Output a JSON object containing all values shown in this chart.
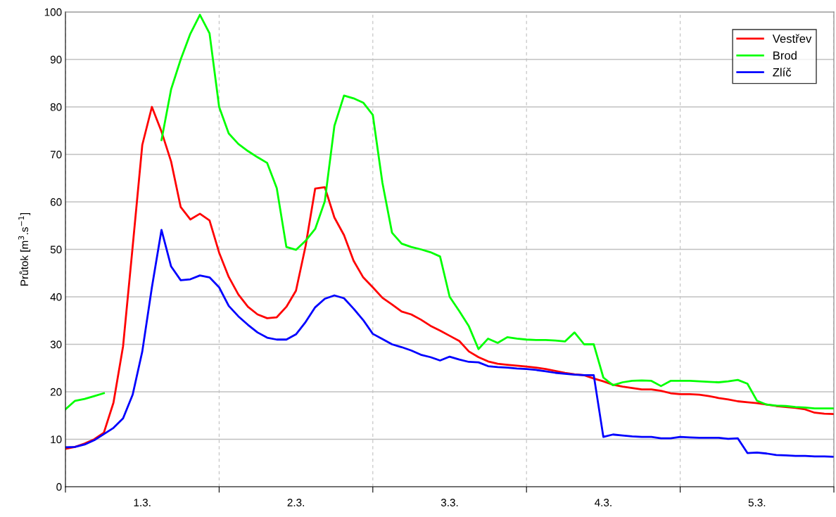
{
  "chart_data": {
    "type": "line",
    "ylabel": "Průtok [m$^{3}$.s$^{−1}$]",
    "categories": [
      null,
      null,
      null,
      null,
      null,
      null,
      null,
      null,
      "1.3.",
      null,
      null,
      null,
      null,
      null,
      null,
      null,
      null,
      null,
      null,
      null,
      null,
      null,
      null,
      null,
      "2.3.",
      null,
      null,
      null,
      null,
      null,
      null,
      null,
      null,
      null,
      null,
      null,
      null,
      null,
      null,
      null,
      "3.3.",
      null,
      null,
      null,
      null,
      null,
      null,
      null,
      null,
      null,
      null,
      null,
      null,
      null,
      null,
      null,
      "4.3.",
      null,
      null,
      null,
      null,
      null,
      null,
      null,
      null,
      null,
      null,
      null,
      null,
      null,
      null,
      null,
      "5.3.",
      null,
      null,
      null,
      null,
      null,
      null,
      null,
      null
    ],
    "ylim": [
      0,
      100
    ],
    "yticks": [
      0,
      10,
      20,
      30,
      40,
      50,
      60,
      70,
      80,
      90,
      100
    ],
    "grid": true,
    "legend": "top right",
    "marker": "none",
    "line_style": "solid",
    "series": [
      {
        "name": "Vestřev",
        "color": "#ff0000",
        "values": [
          8,
          8.4,
          9.1,
          10,
          11.4,
          17.7,
          29.6,
          50.6,
          72,
          80,
          74.8,
          68.5,
          58.9,
          56.3,
          57.5,
          56.1,
          49.3,
          44.2,
          40.5,
          37.9,
          36.3,
          35.5,
          35.7,
          37.9,
          41.3,
          50.7,
          62.8,
          63.1,
          56.7,
          53,
          47.6,
          44.1,
          42,
          39.8,
          38.4,
          36.9,
          36.3,
          35.2,
          33.9,
          32.9,
          31.8,
          30.7,
          28.5,
          27.3,
          26.4,
          25.9,
          25.7,
          25.5,
          25.3,
          25.1,
          24.8,
          24.4,
          24,
          23.7,
          23.5,
          22.8,
          22.2,
          21.5,
          21.1,
          20.8,
          20.5,
          20.5,
          20.2,
          19.7,
          19.5,
          19.5,
          19.4,
          19.1,
          18.7,
          18.4,
          18,
          17.8,
          17.6,
          17.3,
          17,
          16.8,
          16.6,
          16.3,
          15.6,
          15.4,
          15.3
        ]
      },
      {
        "name": "Brod",
        "color": "#00ff00",
        "values": [
          16.3,
          18.1,
          18.5,
          19.1,
          19.7,
          null,
          null,
          null,
          null,
          null,
          73,
          83.7,
          90,
          95.4,
          99.4,
          95.5,
          80,
          74.4,
          72.2,
          70.7,
          69.4,
          68.2,
          62.9,
          50.5,
          49.9,
          51.8,
          54.3,
          60.1,
          76,
          82.4,
          81.8,
          80.9,
          78.3,
          64,
          53.5,
          51.2,
          50.5,
          50,
          49.4,
          48.5,
          40,
          37,
          33.8,
          29,
          31.2,
          30.3,
          31.5,
          31.2,
          31,
          30.9,
          30.9,
          30.8,
          30.6,
          32.5,
          30,
          30,
          23,
          21.4,
          22,
          22.3,
          22.4,
          22.3,
          21.2,
          22.3,
          22.3,
          22.3,
          22.2,
          22.1,
          22,
          22.2,
          22.5,
          21.7,
          18.1,
          17.3,
          17.1,
          17,
          16.8,
          16.7,
          16.5,
          16.5,
          16.5
        ]
      },
      {
        "name": "Zlíč",
        "color": "#0000ff",
        "values": [
          8.3,
          8.4,
          8.9,
          9.8,
          11.1,
          12.4,
          14.4,
          19.4,
          28.5,
          42,
          54.1,
          46.4,
          43.5,
          43.7,
          44.5,
          44.1,
          42,
          38.1,
          35.9,
          34.1,
          32.5,
          31.4,
          31,
          31,
          32.1,
          34.7,
          37.8,
          39.6,
          40.3,
          39.7,
          37.5,
          35.1,
          32.2,
          31.1,
          30,
          29.4,
          28.7,
          27.8,
          27.3,
          26.6,
          27.4,
          26.8,
          26.3,
          26.2,
          25.4,
          25.2,
          25.1,
          24.9,
          24.8,
          24.6,
          24.3,
          24,
          23.8,
          23.6,
          23.5,
          23.5,
          10.5,
          11,
          10.8,
          10.6,
          10.5,
          10.5,
          10.2,
          10.2,
          10.5,
          10.4,
          10.3,
          10.3,
          10.3,
          10.1,
          10.2,
          7.1,
          7.2,
          7,
          6.7,
          6.6,
          6.5,
          6.5,
          6.4,
          6.4,
          6.3
        ]
      }
    ]
  }
}
